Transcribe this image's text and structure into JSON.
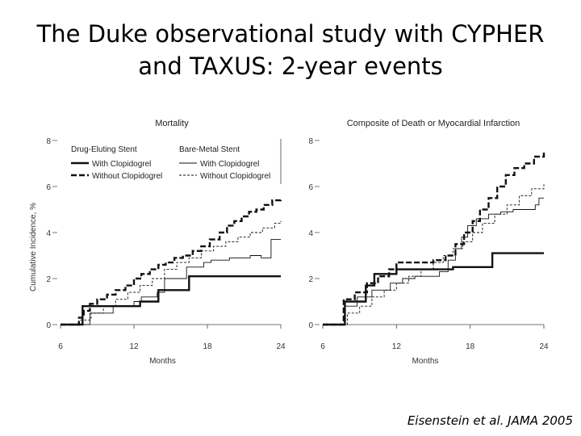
{
  "slide": {
    "title_line1": "The Duke observational study with CYPHER",
    "title_line2": "and TAXUS: 2-year events",
    "citation": "Eisenstein et al. JAMA 2005"
  },
  "legend": {
    "group1_title": "Drug-Eluting Stent",
    "group2_title": "Bare-Metal Stent",
    "with_label": "With Clopidogrel",
    "without_label": "Without Clopidogrel"
  },
  "chart_data": [
    {
      "type": "line",
      "title": "Mortality",
      "xlabel": "Months",
      "ylabel": "Cumulative Incidence, %",
      "xlim": [
        6,
        24
      ],
      "ylim": [
        0,
        8
      ],
      "xticks": [
        "6",
        "12",
        "18",
        "24"
      ],
      "yticks": [
        "0",
        "2",
        "4",
        "6",
        "8"
      ],
      "ytick_dashes": true,
      "legend_position": "top-right",
      "series": [
        {
          "name": "Drug-Eluting Stent With Clopidogrel",
          "style": "thick-solid",
          "x": [
            6,
            7.8,
            7.8,
            12.5,
            12.5,
            14,
            14,
            16.5,
            16.5,
            24
          ],
          "y": [
            0,
            0,
            0.8,
            0.8,
            1.0,
            1.0,
            1.5,
            1.5,
            2.1,
            2.1
          ]
        },
        {
          "name": "Drug-Eluting Stent Without Clopidogrel",
          "style": "thick-dashed",
          "x": [
            6,
            7.5,
            7.9,
            8.4,
            9,
            9.8,
            10.5,
            11.3,
            12,
            12.6,
            13.3,
            14,
            14.6,
            15.3,
            16,
            16.8,
            17.5,
            18.2,
            19,
            19.6,
            20.2,
            20.8,
            21.4,
            22,
            22.6,
            23.3,
            24
          ],
          "y": [
            0,
            0.3,
            0.6,
            0.9,
            1.1,
            1.3,
            1.5,
            1.7,
            2.0,
            2.2,
            2.4,
            2.6,
            2.7,
            2.9,
            3.0,
            3.2,
            3.4,
            3.7,
            4.0,
            4.3,
            4.5,
            4.7,
            4.9,
            5.0,
            5.2,
            5.4,
            5.5
          ]
        },
        {
          "name": "Bare-Metal Stent With Clopidogrel",
          "style": "thin-solid",
          "x": [
            6,
            8.4,
            9,
            10.3,
            12,
            12.6,
            13.9,
            14.5,
            16.3,
            17.7,
            18.3,
            19.8,
            21.5,
            22.4,
            23.2,
            24
          ],
          "y": [
            0,
            0.5,
            0.5,
            0.8,
            1.0,
            1.2,
            1.4,
            2.0,
            2.5,
            2.7,
            2.8,
            2.9,
            3.0,
            2.9,
            3.7,
            3.7
          ]
        },
        {
          "name": "Bare-Metal Stent Without Clopidogrel",
          "style": "thin-dotted",
          "x": [
            6,
            7.5,
            8.5,
            9.5,
            10.5,
            11.5,
            12.5,
            13.5,
            14.5,
            15.5,
            16.5,
            17.5,
            18.5,
            19.5,
            20.5,
            21.5,
            22.5,
            23.5,
            24
          ],
          "y": [
            0,
            0.2,
            0.5,
            0.8,
            1.1,
            1.4,
            1.7,
            2.0,
            2.4,
            2.7,
            2.9,
            3.2,
            3.4,
            3.6,
            3.8,
            4.0,
            4.2,
            4.4,
            4.5
          ]
        }
      ]
    },
    {
      "type": "line",
      "title": "Composite of Death or Myocardial Infarction",
      "xlabel": "Months",
      "ylabel": "",
      "xlim": [
        6,
        24
      ],
      "ylim": [
        0,
        8
      ],
      "xticks": [
        "6",
        "12",
        "18",
        "24"
      ],
      "yticks": [
        "0",
        "2",
        "4",
        "6",
        "8"
      ],
      "ytick_dashes": false,
      "series": [
        {
          "name": "Drug-Eluting Stent With Clopidogrel",
          "style": "thick-solid",
          "x": [
            6,
            7.8,
            7.8,
            9.5,
            9.5,
            10.2,
            10.2,
            12,
            12,
            16.6,
            16.6,
            19.8,
            19.8,
            24
          ],
          "y": [
            0,
            0,
            1.0,
            1.0,
            1.7,
            1.7,
            2.2,
            2.2,
            2.4,
            2.4,
            2.5,
            2.5,
            3.1,
            3.1
          ]
        },
        {
          "name": "Drug-Eluting Stent Without Clopidogrel",
          "style": "thick-dashed",
          "x": [
            6,
            7.7,
            8.6,
            9.6,
            10.5,
            11.4,
            12,
            13,
            14,
            15,
            16,
            16.8,
            17.5,
            18.2,
            18.8,
            19.5,
            20.2,
            20.9,
            21.6,
            22.4,
            23.2,
            24
          ],
          "y": [
            0,
            1.1,
            1.4,
            1.8,
            2.1,
            2.4,
            2.7,
            2.7,
            2.7,
            2.8,
            3.0,
            3.5,
            4.0,
            4.5,
            5.0,
            5.5,
            6.0,
            6.5,
            6.8,
            7.0,
            7.3,
            7.5
          ]
        },
        {
          "name": "Bare-Metal Stent With Clopidogrel",
          "style": "thin-solid",
          "x": [
            6,
            7.8,
            8.8,
            10,
            11.5,
            12.5,
            13.5,
            14.8,
            15.5,
            16.2,
            16.8,
            17.3,
            17.8,
            18.5,
            19.5,
            20.5,
            21.5,
            22.5,
            23.3,
            23.6,
            24
          ],
          "y": [
            0,
            0.8,
            1.2,
            1.5,
            1.8,
            2.0,
            2.1,
            2.1,
            2.3,
            2.8,
            3.3,
            3.8,
            4.3,
            4.6,
            4.8,
            4.9,
            5.0,
            5.0,
            5.2,
            5.5,
            5.5
          ]
        },
        {
          "name": "Bare-Metal Stent Without Clopidogrel",
          "style": "thin-dotted",
          "x": [
            6,
            8,
            9,
            10,
            11,
            12,
            13,
            14,
            15,
            15.8,
            16.6,
            17.4,
            18.2,
            19,
            20,
            21,
            22,
            23,
            24
          ],
          "y": [
            0,
            0.5,
            0.8,
            1.2,
            1.5,
            1.8,
            2.1,
            2.4,
            2.7,
            3.0,
            3.3,
            3.6,
            4.0,
            4.4,
            4.8,
            5.2,
            5.6,
            5.9,
            6.1
          ]
        }
      ]
    }
  ]
}
